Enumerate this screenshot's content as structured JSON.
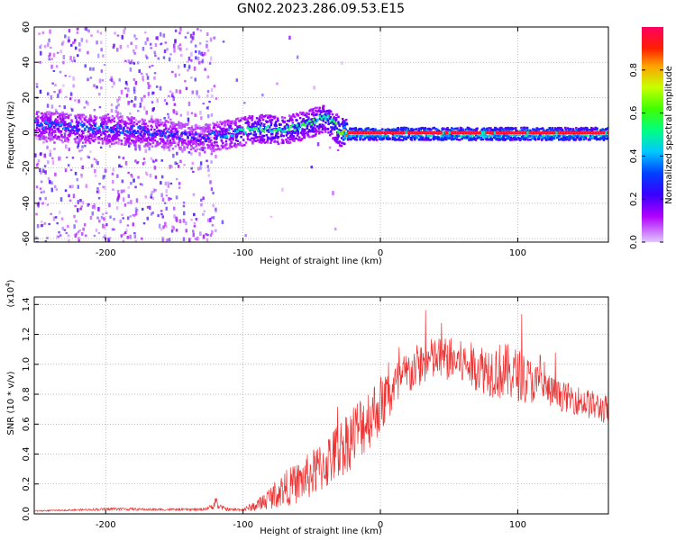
{
  "title": "GN02.2023.286.09.53.E15",
  "chart_data": [
    {
      "type": "heatmap",
      "xlabel": "Height of straight line (km)",
      "ylabel": "Frequency (Hz)",
      "xlim": [
        -252,
        166
      ],
      "ylim": [
        -62,
        60
      ],
      "xticks": [
        "-200",
        "-100",
        "0",
        "100"
      ],
      "xtick_values": [
        -200,
        -100,
        0,
        100
      ],
      "yticks": [
        "-60",
        "-40",
        "-20",
        "0",
        "20",
        "40",
        "60"
      ],
      "ytick_values": [
        -60,
        -40,
        -20,
        0,
        20,
        40,
        60
      ],
      "grid": true,
      "colormap": [
        "#ff00ff",
        "#5a00ff",
        "#0000ff",
        "#00c8ff",
        "#00ff80",
        "#80ff00",
        "#ffc800",
        "#ff0000",
        "#ff0080"
      ],
      "colorbar": {
        "label": "Normalized spectral amplitude",
        "ticks": [
          "0.0",
          "0.2",
          "0.4",
          "0.6",
          "0.8"
        ],
        "tick_values": [
          0.0,
          0.2,
          0.4,
          0.6,
          0.8
        ],
        "range": [
          0,
          1
        ]
      },
      "ridge": {
        "x": [
          -252,
          -220,
          -190,
          -160,
          -130,
          -110,
          -90,
          -70,
          -55,
          -40,
          -30,
          -25,
          0,
          60,
          100,
          166
        ],
        "frequency": [
          5,
          3,
          2,
          0,
          -3,
          0,
          3,
          2,
          5,
          9,
          1,
          0,
          0,
          0,
          0,
          0
        ],
        "amplitude": [
          0.35,
          0.35,
          0.35,
          0.3,
          0.25,
          0.4,
          0.5,
          0.5,
          0.5,
          0.5,
          0.6,
          0.95,
          0.95,
          0.95,
          0.95,
          0.95
        ]
      }
    },
    {
      "type": "line",
      "xlabel": "Height of straight line (km)",
      "ylabel": "SNR (10 * v/v)",
      "yscale_label": "(x10",
      "yscale_exp": "4",
      "yscale_close": ")",
      "xlim": [
        -252,
        166
      ],
      "ylim": [
        0,
        1.45
      ],
      "xticks": [
        "-200",
        "-100",
        "0",
        "100"
      ],
      "xtick_values": [
        -200,
        -100,
        0,
        100
      ],
      "yticks": [
        "0.0",
        "0.2",
        "0.4",
        "0.6",
        "0.8",
        "1.0",
        "1.2",
        "1.4"
      ],
      "ytick_values": [
        0.0,
        0.2,
        0.4,
        0.6,
        0.8,
        1.0,
        1.2,
        1.4
      ],
      "grid": true,
      "color": "#ee3333",
      "series": [
        {
          "x": [
            -252,
            -230,
            -210,
            -190,
            -170,
            -150,
            -130,
            -122,
            -120,
            -118,
            -110,
            -100,
            -90,
            -80,
            -70,
            -60,
            -50,
            -40,
            -30,
            -20,
            -10,
            0,
            10,
            20,
            30,
            40,
            50,
            60,
            70,
            80,
            90,
            100,
            110,
            120,
            130,
            140,
            150,
            166
          ],
          "y": [
            0.02,
            0.025,
            0.03,
            0.035,
            0.03,
            0.03,
            0.03,
            0.05,
            0.1,
            0.05,
            0.03,
            0.03,
            0.06,
            0.12,
            0.18,
            0.22,
            0.28,
            0.35,
            0.45,
            0.55,
            0.65,
            0.75,
            0.85,
            0.95,
            1.02,
            1.05,
            1.05,
            1.02,
            1.0,
            0.98,
            0.97,
            0.95,
            0.9,
            0.85,
            0.8,
            0.78,
            0.75,
            0.7
          ],
          "noise": [
            0.005,
            0.005,
            0.008,
            0.01,
            0.008,
            0.008,
            0.008,
            0.02,
            0.04,
            0.02,
            0.01,
            0.01,
            0.04,
            0.08,
            0.12,
            0.14,
            0.16,
            0.18,
            0.2,
            0.22,
            0.22,
            0.2,
            0.18,
            0.16,
            0.15,
            0.15,
            0.15,
            0.15,
            0.16,
            0.18,
            0.2,
            0.18,
            0.15,
            0.12,
            0.1,
            0.1,
            0.1,
            0.1
          ]
        }
      ]
    }
  ]
}
